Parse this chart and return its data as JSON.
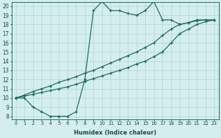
{
  "xlabel": "Humidex (Indice chaleur)",
  "bg_color": "#d4eeed",
  "grid_color": "#b0d4d0",
  "line_color": "#1a6b5a",
  "xlim_min": -0.5,
  "xlim_max": 23.5,
  "ylim_min": 7.7,
  "ylim_max": 20.4,
  "xticks": [
    0,
    1,
    2,
    3,
    4,
    5,
    6,
    7,
    8,
    9,
    10,
    11,
    12,
    13,
    14,
    15,
    16,
    17,
    18,
    19,
    20,
    21,
    22,
    23
  ],
  "yticks": [
    8,
    9,
    10,
    11,
    12,
    13,
    14,
    15,
    16,
    17,
    18,
    19,
    20
  ],
  "curve_jagged_x": [
    0,
    1,
    2,
    3,
    4,
    5,
    6,
    7,
    8,
    9,
    10,
    11,
    12,
    13,
    14,
    15,
    16,
    17,
    18,
    19,
    20,
    21,
    22,
    23
  ],
  "curve_jagged_y": [
    10.0,
    10.0,
    9.0,
    8.5,
    8.0,
    8.0,
    8.0,
    8.5,
    12.0,
    19.5,
    20.5,
    19.5,
    19.5,
    19.2,
    19.0,
    19.5,
    20.5,
    18.5,
    18.5,
    18.0,
    18.2,
    18.5,
    18.5,
    18.5
  ],
  "curve_low_diag_x": [
    0,
    1,
    2,
    3,
    4,
    5,
    6,
    7,
    8,
    9,
    10,
    11,
    12,
    13,
    14,
    15,
    16,
    17,
    18,
    19,
    20,
    21,
    22,
    23
  ],
  "curve_low_diag_y": [
    10.0,
    10.2,
    10.4,
    10.6,
    10.8,
    11.0,
    11.2,
    11.5,
    11.8,
    12.1,
    12.4,
    12.7,
    13.0,
    13.3,
    13.7,
    14.0,
    14.5,
    15.0,
    16.0,
    17.0,
    17.5,
    18.0,
    18.3,
    18.5
  ],
  "curve_up_diag_x": [
    0,
    1,
    2,
    3,
    4,
    5,
    6,
    7,
    8,
    9,
    10,
    11,
    12,
    13,
    14,
    15,
    16,
    17,
    18,
    19,
    20,
    21,
    22,
    23
  ],
  "curve_up_diag_y": [
    10.0,
    10.3,
    10.7,
    11.0,
    11.3,
    11.7,
    12.0,
    12.3,
    12.7,
    13.0,
    13.4,
    13.8,
    14.2,
    14.6,
    15.0,
    15.5,
    16.0,
    16.8,
    17.5,
    18.0,
    18.2,
    18.4,
    18.5,
    18.5
  ]
}
